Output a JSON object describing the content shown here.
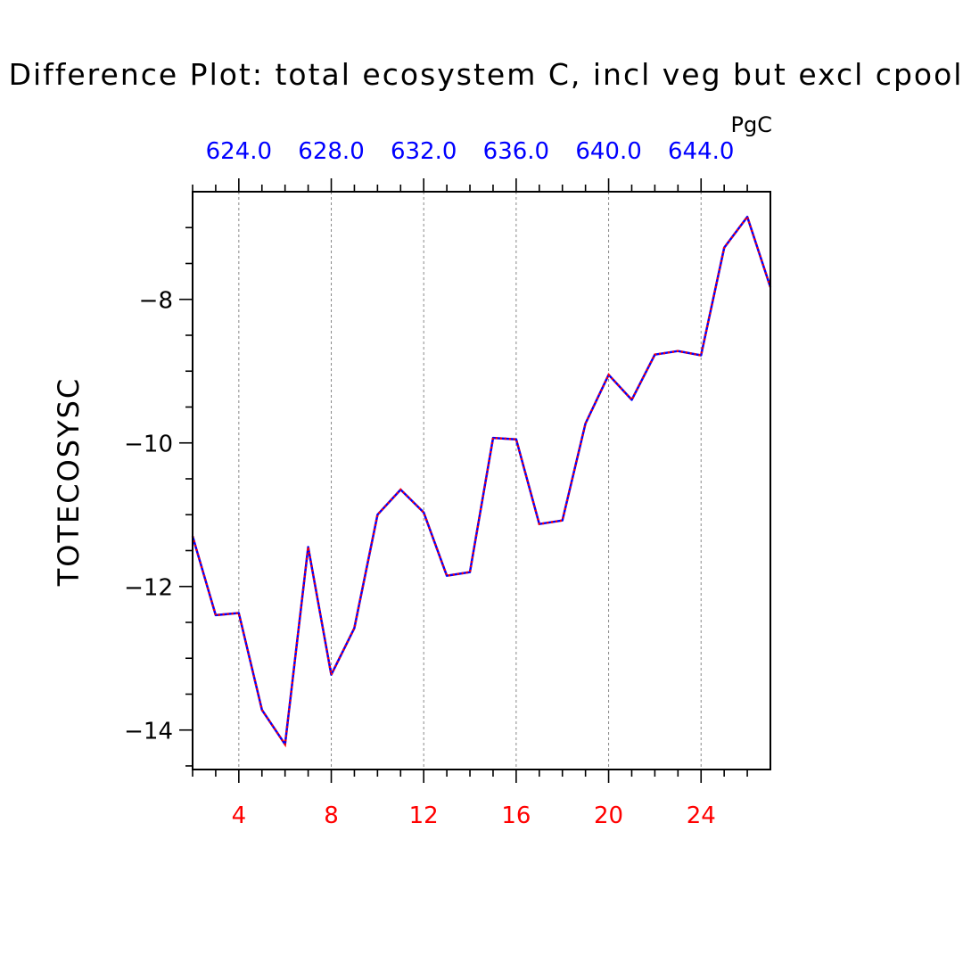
{
  "chart_data": {
    "type": "line",
    "title": "Difference Plot: total ecosystem C, incl veg but excl cpool",
    "ylabel": "TOTECOSYSC",
    "units_label": "PgC",
    "xlim": [
      2,
      27
    ],
    "ylim": [
      -14.55,
      -6.5
    ],
    "x_ticks": [
      4,
      8,
      12,
      16,
      20,
      24
    ],
    "x_minor_ticks": [
      2,
      3,
      5,
      6,
      7,
      9,
      10,
      11,
      13,
      14,
      15,
      17,
      18,
      19,
      21,
      22,
      23,
      25,
      26
    ],
    "y_ticks": [
      -8,
      -10,
      -12,
      -14
    ],
    "y_minor_ticks": [
      -7,
      -7.5,
      -8.5,
      -9,
      -9.5,
      -10.5,
      -11,
      -11.5,
      -12.5,
      -13,
      -13.5,
      -14.5
    ],
    "top_axis_labels": [
      "624.0",
      "628.0",
      "632.0",
      "636.0",
      "640.0",
      "644.0"
    ],
    "bottom_tick_color": "#ff0000",
    "top_tick_color": "#0000ff",
    "grid": "vertical dashed at major x ticks",
    "series": [
      {
        "color_primary": "#0000ff",
        "color_dash": "#ff0000",
        "x": [
          2,
          3,
          4,
          5,
          6,
          7,
          8,
          9,
          10,
          11,
          12,
          13,
          14,
          15,
          16,
          17,
          18,
          19,
          20,
          21,
          22,
          23,
          24,
          25,
          26,
          27
        ],
        "values": [
          -11.3,
          -12.4,
          -12.37,
          -13.72,
          -14.2,
          -11.45,
          -13.23,
          -12.58,
          -11.0,
          -10.65,
          -10.97,
          -11.85,
          -11.8,
          -9.93,
          -9.95,
          -11.13,
          -11.08,
          -9.73,
          -9.05,
          -9.4,
          -8.77,
          -8.72,
          -8.78,
          -7.28,
          -6.85,
          -7.83
        ]
      }
    ]
  }
}
